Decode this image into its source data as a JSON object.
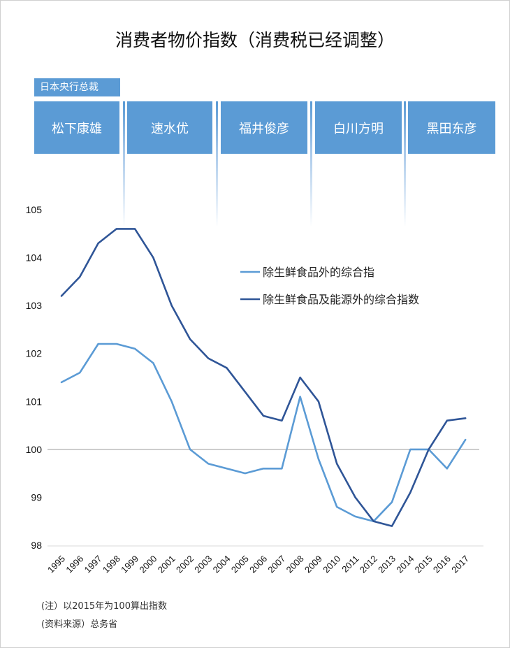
{
  "chart_data": {
    "type": "line",
    "title": "消费者物价指数（消费税已经调整）",
    "x": [
      "1995",
      "1996",
      "1997",
      "1998",
      "1999",
      "2000",
      "2001",
      "2002",
      "2003",
      "2004",
      "2005",
      "2006",
      "2007",
      "2008",
      "2009",
      "2010",
      "2011",
      "2012",
      "2013",
      "2014",
      "2015",
      "2016",
      "2017"
    ],
    "series": [
      {
        "name": "除生鲜食品外的综合指",
        "color": "#5b9bd5",
        "values": [
          101.4,
          101.6,
          102.2,
          102.2,
          102.1,
          101.8,
          101.0,
          100.0,
          99.7,
          99.6,
          99.5,
          99.6,
          99.6,
          101.1,
          99.8,
          98.8,
          98.6,
          98.5,
          98.9,
          100.0,
          100.0,
          99.6,
          100.2
        ]
      },
      {
        "name": "除生鲜食品及能源外的综合指数",
        "color": "#2f5597",
        "values": [
          103.2,
          103.6,
          104.3,
          104.6,
          104.6,
          104.0,
          103.0,
          102.3,
          101.9,
          101.7,
          101.2,
          100.7,
          100.6,
          101.5,
          101.0,
          99.7,
          99.0,
          98.5,
          98.4,
          99.1,
          100.0,
          100.6,
          100.65
        ]
      }
    ],
    "y_ticks": [
      "98",
      "99",
      "100",
      "101",
      "102",
      "103",
      "104",
      "105"
    ],
    "ylim": [
      98,
      105
    ],
    "reference_line": 100,
    "legend_position": "right-middle",
    "grid": false
  },
  "governors": {
    "label": "日本央行总裁",
    "names": [
      "松下康雄",
      "速水优",
      "福井俊彦",
      "白川方明",
      "黑田东彦"
    ]
  },
  "notes": {
    "note1": "(注）以2015年为100算出指数",
    "note2": "(资料来源）总务省"
  }
}
